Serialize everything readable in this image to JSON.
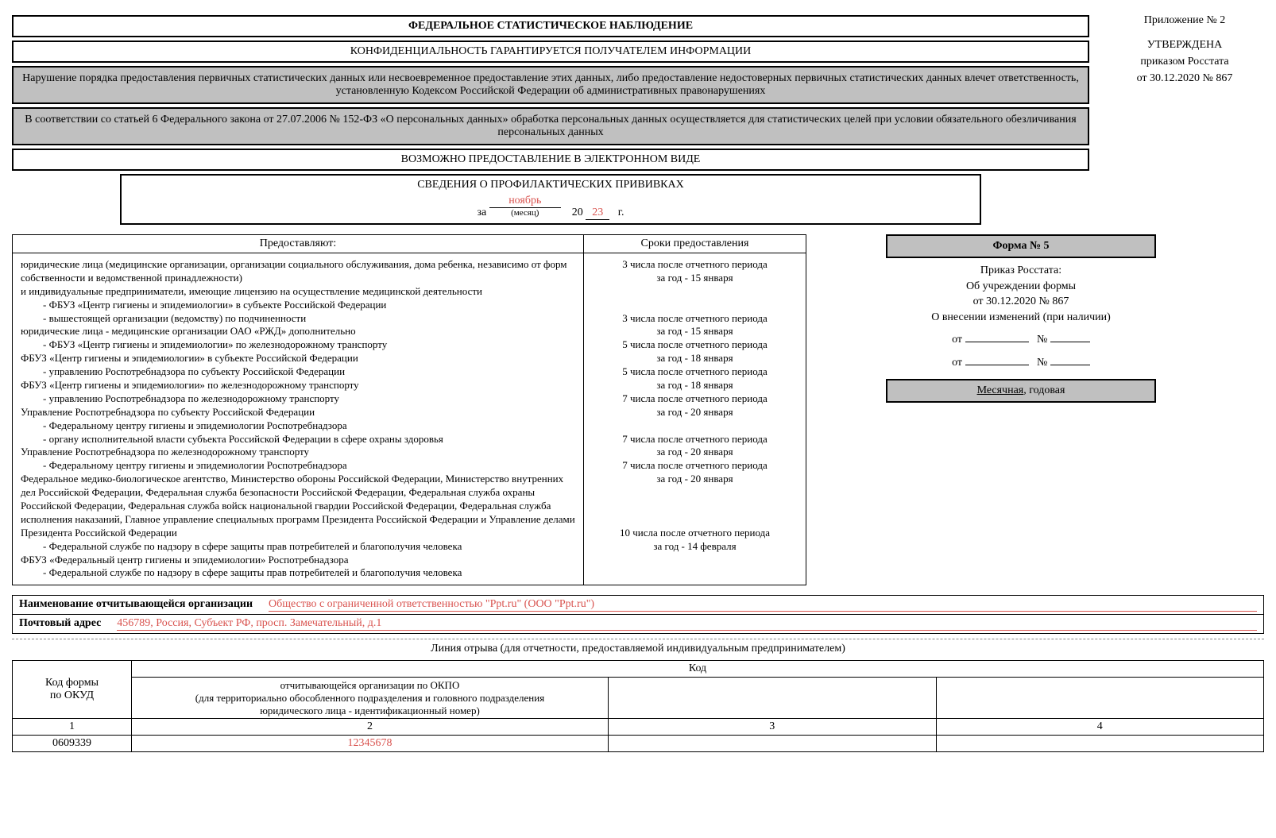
{
  "approval": {
    "appendix": "Приложение № 2",
    "approved": "УТВЕРЖДЕНА",
    "order": "приказом Росстата",
    "date": "от 30.12.2020 № 867"
  },
  "headers": {
    "title": "ФЕДЕРАЛЬНОЕ СТАТИСТИЧЕСКОЕ НАБЛЮДЕНИЕ",
    "confidentiality": "КОНФИДЕНЦИАЛЬНОСТЬ ГАРАНТИРУЕТСЯ ПОЛУЧАТЕЛЕМ ИНФОРМАЦИИ",
    "violation": "Нарушение порядка предоставления первичных статистических данных или несвоевременное предоставление этих данных, либо предоставление недостоверных первичных статистических данных влечет ответственность, установленную Кодексом Российской Федерации об административных правонарушениях",
    "personal_data": "В соответствии со статьей 6 Федерального закона от 27.07.2006 № 152-ФЗ «О персональных данных» обработка персональных данных осуществляется для статистических целей при условии обязательного обезличивания персональных данных",
    "electronic": "ВОЗМОЖНО ПРЕДОСТАВЛЕНИЕ В ЭЛЕКТРОННОМ ВИДЕ",
    "subject": "СВЕДЕНИЯ О ПРОФИЛАКТИЧЕСКИХ ПРИВИВКАХ",
    "period_prefix": "за",
    "month": "ноябрь",
    "year_prefix": "20",
    "year": "23",
    "year_suffix": "г.",
    "month_label": "(месяц)"
  },
  "submitters": {
    "header": "Предоставляют:",
    "body": [
      {
        "text": "юридические лица (медицинские организации, организации социального обслуживания, дома ребенка, независимо от форм собственности и ведомственной принадлежности)",
        "indent": false
      },
      {
        "text": "и индивидуальные предприниматели, имеющие лицензию на осуществление медицинской деятельности",
        "indent": false
      },
      {
        "text": "- ФБУЗ «Центр гигиены и эпидемиологии» в субъекте Российской Федерации",
        "indent": true
      },
      {
        "text": "- вышестоящей организации (ведомству) по подчиненности",
        "indent": true
      },
      {
        "text": "юридические лица - медицинские организации ОАО «РЖД» дополнительно",
        "indent": false
      },
      {
        "text": "- ФБУЗ «Центр гигиены и эпидемиологии» по железнодорожному транспорту",
        "indent": true
      },
      {
        "text": "ФБУЗ «Центр гигиены и эпидемиологии» в субъекте Российской Федерации",
        "indent": false
      },
      {
        "text": "- управлению Роспотребнадзора по субъекту Российской Федерации",
        "indent": true
      },
      {
        "text": "ФБУЗ «Центр гигиены и эпидемиологии» по железнодорожному транспорту",
        "indent": false
      },
      {
        "text": "- управлению Роспотребнадзора по железнодорожному транспорту",
        "indent": true
      },
      {
        "text": "Управление Роспотребнадзора по субъекту Российской Федерации",
        "indent": false
      },
      {
        "text": "- Федеральному центру гигиены и эпидемиологии Роспотребнадзора",
        "indent": true
      },
      {
        "text": "- органу исполнительной власти субъекта Российской Федерации в сфере охраны здоровья",
        "indent": true
      },
      {
        "text": "Управление Роспотребнадзора по железнодорожному транспорту",
        "indent": false
      },
      {
        "text": "- Федеральному центру гигиены и эпидемиологии Роспотребнадзора",
        "indent": true
      },
      {
        "text": "Федеральное медико-биологическое агентство, Министерство обороны Российской Федерации, Министерство внутренних дел Российской Федерации, Федеральная служба безопасности Российской Федерации, Федеральная служба охраны Российской Федерации, Федеральная служба войск национальной гвардии Российской Федерации, Федеральная служба исполнения наказаний, Главное управление специальных программ Президента Российской Федерации и Управление делами Президента Российской Федерации",
        "indent": false
      },
      {
        "text": "- Федеральной службе по надзору в сфере защиты прав потребителей и благополучия человека",
        "indent": true
      },
      {
        "text": "ФБУЗ «Федеральный центр гигиены и эпидемиологии» Роспотребнадзора",
        "indent": false
      },
      {
        "text": "- Федеральной службе по надзору в сфере защиты прав потребителей и благополучия человека",
        "indent": true
      }
    ]
  },
  "deadlines": {
    "header": "Сроки предоставления",
    "rows": [
      {
        "lines": [
          "3 числа после отчетного периода",
          "за год - 15 января"
        ],
        "padBefore": 0
      },
      {
        "lines": [
          "",
          ""
        ],
        "padBefore": 0
      },
      {
        "lines": [
          "3 числа после отчетного периода",
          "за год - 15 января"
        ],
        "padBefore": 0
      },
      {
        "lines": [
          "5 числа после отчетного периода",
          "за год - 18 января"
        ],
        "padBefore": 0
      },
      {
        "lines": [
          "5 числа после отчетного периода",
          "за год - 18 января"
        ],
        "padBefore": 0
      },
      {
        "lines": [
          "7 числа после отчетного периода",
          "за год - 20 января"
        ],
        "padBefore": 0
      },
      {
        "lines": [
          ""
        ],
        "padBefore": 0
      },
      {
        "lines": [
          "7 числа после отчетного периода",
          "за год - 20 января"
        ],
        "padBefore": 0
      },
      {
        "lines": [
          "7 числа после отчетного периода",
          "за год - 20 января",
          "",
          "",
          ""
        ],
        "padBefore": 0
      },
      {
        "lines": [
          "10 числа после отчетного периода",
          "за год - 14 февраля"
        ],
        "padBefore": 0
      }
    ]
  },
  "form": {
    "number": "Форма № 5",
    "order_title": "Приказ Росстата:",
    "order_about": "Об учреждении формы",
    "order_date": "от 30.12.2020 № 867",
    "changes": "О внесении изменений (при наличии)",
    "from_label": "от",
    "no_label": "№",
    "periodicity": "Месячная",
    "periodicity_suffix": ", годовая"
  },
  "org": {
    "name_label": "Наименование отчитывающейся организации",
    "name_value": "Общество с ограниченной ответственностью \"Ppt.ru\" (ООО \"Ppt.ru\")",
    "address_label": "Почтовый адрес",
    "address_value": "456789, Россия, Субъект РФ, просп. Замечательный, д.1"
  },
  "tear_line": "Линия отрыва (для отчетности, предоставляемой индивидуальным предпринимателем)",
  "code_table": {
    "col1_header_a": "Код формы",
    "col1_header_b": "по ОКУД",
    "merged_header": "Код",
    "col2_header_a": "отчитывающейся организации по ОКПО",
    "col2_header_b": "(для территориально обособленного подразделения и головного подразделения",
    "col2_header_c": "юридического лица - идентификационный номер)",
    "row_num_1": "1",
    "row_num_2": "2",
    "row_num_3": "3",
    "row_num_4": "4",
    "okud_value": "0609339",
    "okpo_value": "12345678"
  }
}
